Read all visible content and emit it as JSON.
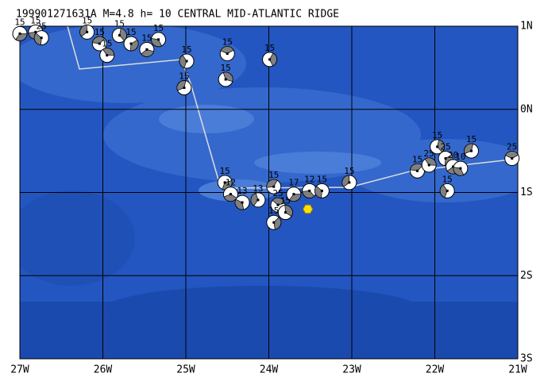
{
  "title": "199901271631A M=4.8 h= 10 CENTRAL MID-ATLANTIC RIDGE",
  "map": {
    "xlim": [
      -27,
      -21
    ],
    "ylim": [
      -3,
      1
    ],
    "xticks": [
      {
        "value": -27,
        "label": "27W"
      },
      {
        "value": -26,
        "label": "26W"
      },
      {
        "value": -25,
        "label": "25W"
      },
      {
        "value": -24,
        "label": "24W"
      },
      {
        "value": -23,
        "label": "23W"
      },
      {
        "value": -22,
        "label": "22W"
      },
      {
        "value": -21,
        "label": "21W"
      }
    ],
    "yticks": [
      {
        "value": 1,
        "label": "1N"
      },
      {
        "value": 0,
        "label": "0N"
      },
      {
        "value": -1,
        "label": "1S"
      },
      {
        "value": -2,
        "label": "2S"
      },
      {
        "value": -3,
        "label": "3S"
      }
    ],
    "epicenter": {
      "lon": -23.53,
      "lat": -1.2
    },
    "events": [
      {
        "lon": -27.0,
        "lat": 0.91,
        "label": "15"
      },
      {
        "lon": -26.81,
        "lat": 0.93,
        "label": "15"
      },
      {
        "lon": -26.74,
        "lat": 0.86,
        "label": "25"
      },
      {
        "lon": -26.19,
        "lat": 0.93,
        "label": "15"
      },
      {
        "lon": -26.04,
        "lat": 0.79,
        "label": "15"
      },
      {
        "lon": -25.95,
        "lat": 0.65,
        "label": "15"
      },
      {
        "lon": -25.8,
        "lat": 0.89,
        "label": "15"
      },
      {
        "lon": -25.66,
        "lat": 0.79,
        "label": "15"
      },
      {
        "lon": -25.47,
        "lat": 0.72,
        "label": "15"
      },
      {
        "lon": -25.33,
        "lat": 0.84,
        "label": "15"
      },
      {
        "lon": -24.99,
        "lat": 0.58,
        "label": "15"
      },
      {
        "lon": -25.02,
        "lat": 0.26,
        "label": "15"
      },
      {
        "lon": -24.5,
        "lat": 0.67,
        "label": "15"
      },
      {
        "lon": -24.52,
        "lat": 0.36,
        "label": "15"
      },
      {
        "lon": -23.99,
        "lat": 0.6,
        "label": "15"
      },
      {
        "lon": -24.53,
        "lat": -0.88,
        "label": "15"
      },
      {
        "lon": -24.46,
        "lat": -1.02,
        "label": "12"
      },
      {
        "lon": -24.32,
        "lat": -1.12,
        "label": "13"
      },
      {
        "lon": -24.13,
        "lat": -1.09,
        "label": "13"
      },
      {
        "lon": -23.94,
        "lat": -0.93,
        "label": "15"
      },
      {
        "lon": -23.89,
        "lat": -1.15,
        "label": "25"
      },
      {
        "lon": -23.8,
        "lat": -1.24,
        "label": "15"
      },
      {
        "lon": -23.94,
        "lat": -1.36,
        "label": "15"
      },
      {
        "lon": -23.7,
        "lat": -1.02,
        "label": "17"
      },
      {
        "lon": -23.51,
        "lat": -0.98,
        "label": "12"
      },
      {
        "lon": -23.36,
        "lat": -0.98,
        "label": "15"
      },
      {
        "lon": -23.03,
        "lat": -0.88,
        "label": "15"
      },
      {
        "lon": -22.21,
        "lat": -0.74,
        "label": "15"
      },
      {
        "lon": -22.07,
        "lat": -0.67,
        "label": "25"
      },
      {
        "lon": -21.97,
        "lat": -0.45,
        "label": "15"
      },
      {
        "lon": -21.87,
        "lat": -0.59,
        "label": "25"
      },
      {
        "lon": -21.78,
        "lat": -0.69,
        "label": "20"
      },
      {
        "lon": -21.69,
        "lat": -0.71,
        "label": "10"
      },
      {
        "lon": -21.85,
        "lat": -0.98,
        "label": "15"
      },
      {
        "lon": -21.56,
        "lat": -0.5,
        "label": "15"
      },
      {
        "lon": -21.07,
        "lat": -0.59,
        "label": "25"
      }
    ]
  }
}
